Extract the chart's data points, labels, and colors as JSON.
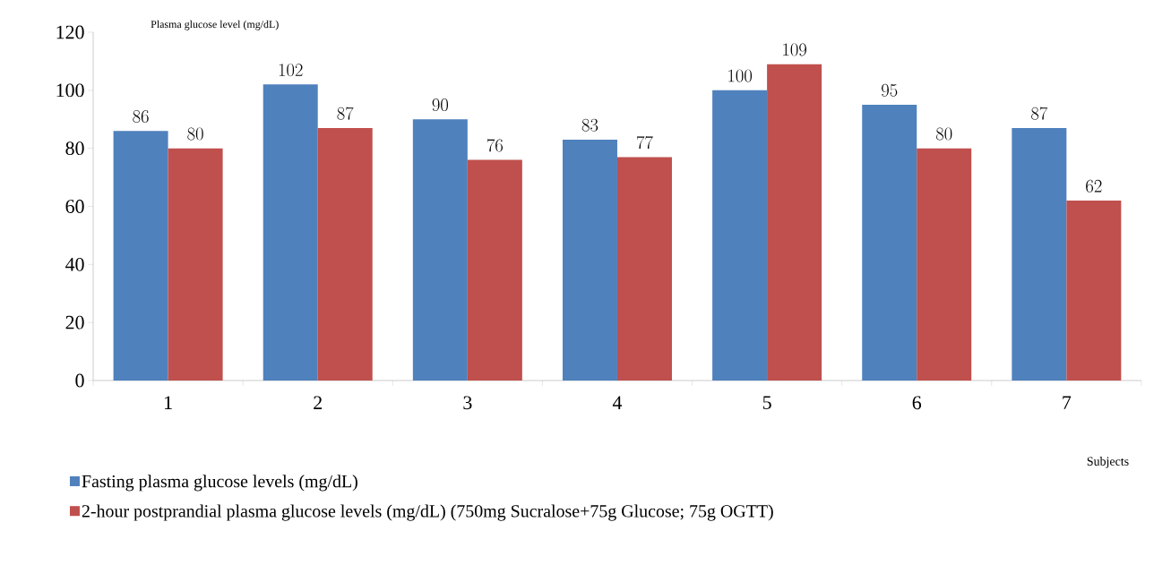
{
  "chart_data": {
    "type": "bar",
    "ylabel": "Plasma glucose level (mg/dL)",
    "xlabel": "Subjects",
    "categories": [
      "1",
      "2",
      "3",
      "4",
      "5",
      "6",
      "7"
    ],
    "series": [
      {
        "name": "Fasting plasma glucose levels (mg/dL)",
        "color": "#4f81bd",
        "values": [
          86,
          102,
          90,
          83,
          100,
          95,
          87
        ]
      },
      {
        "name": "2-hour postprandial plasma glucose levels (mg/dL) (750mg Sucralose+75g Glucose; 75g OGTT)",
        "color": "#c0504d",
        "values": [
          80,
          87,
          76,
          77,
          109,
          80,
          62
        ]
      }
    ],
    "ylim": [
      0,
      120
    ],
    "yticks": [
      0,
      20,
      40,
      60,
      80,
      100,
      120
    ],
    "data_labels": true,
    "grid": false,
    "legend": "bottom"
  }
}
